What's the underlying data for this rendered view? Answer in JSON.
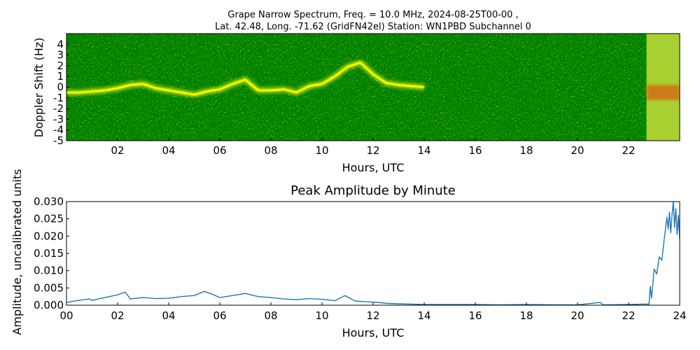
{
  "figure": {
    "title_line1": "Grape Narrow Spectrum, Freq. = 10.0 MHz, 2024-08-25T00-00 ,",
    "title_line2": "Lat.  42.48, Long. -71.62 (GridFN42el) Station: WN1PBD Subchannel 0"
  },
  "colors": {
    "spectrum_background": "#008000",
    "spectrum_trace": "#ffff00",
    "spectrum_right_band": "#a8d030",
    "spectrum_hot": "#e05010",
    "amplitude_line": "#1f77b4"
  },
  "chart_data": [
    {
      "type": "heatmap",
      "title": "",
      "xlabel": "Hours, UTC",
      "ylabel": "Doppler Shift (Hz)",
      "xlim": [
        0,
        24
      ],
      "ylim": [
        -5,
        5
      ],
      "xticks": [
        2,
        4,
        6,
        8,
        10,
        12,
        14,
        16,
        18,
        20,
        22
      ],
      "xtick_labels": [
        "02",
        "04",
        "06",
        "08",
        "10",
        "12",
        "14",
        "16",
        "18",
        "20",
        "22"
      ],
      "yticks": [
        4,
        3,
        2,
        1,
        0,
        -1,
        -2,
        -3,
        -4,
        -5
      ],
      "ytick_labels": [
        "4",
        "3",
        "2",
        "1",
        "0",
        "-1",
        "-2",
        "-3",
        "-4",
        "-5"
      ],
      "trace": {
        "x": [
          0,
          0.5,
          1,
          1.5,
          2,
          2.5,
          3,
          3.5,
          4,
          4.5,
          5,
          5.5,
          6,
          6.5,
          7,
          7.5,
          8,
          8.5,
          9,
          9.5,
          10,
          10.5,
          11,
          11.5,
          12,
          12.5,
          13,
          13.5,
          14
        ],
        "y": [
          -0.5,
          -0.5,
          -0.4,
          -0.3,
          -0.1,
          0.2,
          0.3,
          -0.1,
          -0.3,
          -0.5,
          -0.7,
          -0.4,
          -0.2,
          0.3,
          0.7,
          -0.3,
          -0.3,
          -0.2,
          -0.5,
          0.1,
          0.3,
          1.0,
          1.9,
          2.3,
          1.2,
          0.4,
          0.2,
          0.1,
          0.0
        ]
      },
      "right_band_xlim": [
        22.7,
        24
      ]
    },
    {
      "type": "line",
      "title": "Peak Amplitude by Minute",
      "xlabel": "Hours, UTC",
      "ylabel": "Amplitude, uncalibrated units",
      "xlim": [
        0,
        24
      ],
      "ylim": [
        0,
        0.03
      ],
      "xticks": [
        0,
        2,
        4,
        6,
        8,
        10,
        12,
        14,
        16,
        18,
        20,
        22,
        24
      ],
      "xtick_labels": [
        "00",
        "02",
        "04",
        "06",
        "08",
        "10",
        "12",
        "14",
        "16",
        "18",
        "20",
        "22",
        "24"
      ],
      "yticks": [
        0,
        0.005,
        0.01,
        0.015,
        0.02,
        0.025,
        0.03
      ],
      "ytick_labels": [
        "0.000",
        "0.005",
        "0.010",
        "0.015",
        "0.020",
        "0.025",
        "0.030"
      ],
      "series": [
        {
          "x": [
            0,
            0.3,
            0.6,
            0.9,
            1.0,
            1.5,
            2.0,
            2.3,
            2.5,
            3.0,
            3.5,
            4.0,
            4.5,
            5.0,
            5.4,
            5.7,
            6.0,
            6.5,
            7.0,
            7.5,
            8.0,
            8.5,
            9.0,
            9.5,
            10.0,
            10.5,
            10.9,
            11.3,
            11.7,
            12.0,
            12.3,
            12.6,
            13.0,
            13.5,
            14.0,
            15.0,
            16.0,
            17.0,
            18.0,
            19.0,
            20.0,
            20.9,
            21.0,
            22.0,
            22.6,
            22.8,
            22.85,
            22.9,
            23.0,
            23.1,
            23.2,
            23.3,
            23.4,
            23.5,
            23.55,
            23.6,
            23.65,
            23.7,
            23.75,
            23.8,
            23.85,
            23.9,
            23.95,
            24.0
          ],
          "y": [
            0.0008,
            0.0012,
            0.0015,
            0.0018,
            0.0014,
            0.0022,
            0.003,
            0.0038,
            0.0018,
            0.0022,
            0.0019,
            0.002,
            0.0025,
            0.0028,
            0.004,
            0.0032,
            0.0022,
            0.0028,
            0.0034,
            0.0025,
            0.0022,
            0.0018,
            0.0016,
            0.0019,
            0.0017,
            0.0013,
            0.0028,
            0.0012,
            0.001,
            0.0009,
            0.0007,
            0.0005,
            0.0004,
            0.0003,
            0.0002,
            0.0002,
            0.0002,
            0.0001,
            0.0002,
            0.0001,
            0.0001,
            0.0008,
            0.0001,
            0.0002,
            0.0003,
            0.0003,
            0.0055,
            0.002,
            0.0105,
            0.009,
            0.014,
            0.013,
            0.0195,
            0.0255,
            0.022,
            0.027,
            0.021,
            0.026,
            0.03,
            0.0225,
            0.028,
            0.0205,
            0.026,
            0.019
          ]
        }
      ]
    }
  ]
}
